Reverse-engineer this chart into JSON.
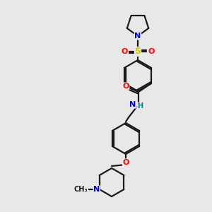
{
  "bg_color": "#e8e8e8",
  "bond_color": "#1a1a1a",
  "atom_colors": {
    "O": "#ff0000",
    "N": "#0000cc",
    "S": "#cccc00",
    "C": "#1a1a1a",
    "H": "#008080"
  },
  "figsize": [
    3.0,
    3.0
  ],
  "dpi": 100
}
